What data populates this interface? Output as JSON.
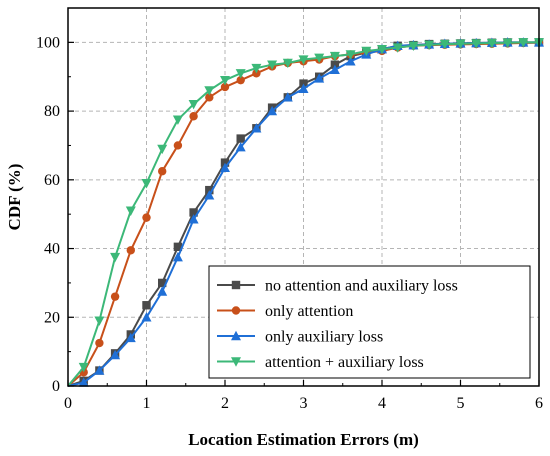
{
  "chart_data": {
    "type": "line",
    "title": "",
    "xlabel": "Location Estimation Errors (m)",
    "ylabel": "CDF (%)",
    "xlim": [
      0,
      6
    ],
    "ylim": [
      0,
      110
    ],
    "x_ticks": [
      "0",
      "1",
      "2",
      "3",
      "4",
      "5",
      "6"
    ],
    "y_ticks": [
      "0",
      "20",
      "40",
      "60",
      "80",
      "100"
    ],
    "grid": true,
    "legend_position": "bottom-right",
    "series": [
      {
        "name": "no attention and auxiliary loss",
        "color": "#4a4a4a",
        "marker": "square",
        "x": [
          0.2,
          0.4,
          0.6,
          0.8,
          1.0,
          1.2,
          1.4,
          1.6,
          1.8,
          2.0,
          2.2,
          2.4,
          2.6,
          2.8,
          3.0,
          3.2,
          3.4,
          3.6,
          3.8,
          4.0,
          4.2,
          4.4,
          4.6,
          4.8,
          5.0,
          5.2,
          5.4,
          5.6,
          5.8,
          6.0
        ],
        "y": [
          1.5,
          4.5,
          9.5,
          15,
          23.5,
          30,
          40.5,
          50.5,
          57,
          65,
          72,
          75,
          81,
          84,
          88,
          90,
          93.5,
          96,
          97,
          98,
          99,
          99.2,
          99.5,
          99.6,
          99.7,
          99.8,
          99.9,
          100,
          100,
          100
        ]
      },
      {
        "name": "only attention",
        "color": "#c8501a",
        "marker": "circle",
        "x": [
          0.2,
          0.4,
          0.6,
          0.8,
          1.0,
          1.2,
          1.4,
          1.6,
          1.8,
          2.0,
          2.2,
          2.4,
          2.6,
          2.8,
          3.0,
          3.2,
          3.4,
          3.6,
          3.8,
          4.0,
          4.2,
          4.4,
          4.6,
          4.8,
          5.0,
          5.2,
          5.4,
          5.6,
          5.8,
          6.0
        ],
        "y": [
          4,
          12.5,
          26,
          39.5,
          49,
          62.5,
          70,
          78.5,
          84,
          87,
          89,
          91,
          93,
          94,
          94.5,
          95,
          96,
          96.5,
          97,
          97.5,
          98.5,
          99,
          99.2,
          99.3,
          99.4,
          99.5,
          99.6,
          99.7,
          99.8,
          99.9
        ]
      },
      {
        "name": "only auxiliary loss",
        "color": "#1f6fd6",
        "marker": "triangle-up",
        "x": [
          0.2,
          0.4,
          0.6,
          0.8,
          1.0,
          1.2,
          1.4,
          1.6,
          1.8,
          2.0,
          2.2,
          2.4,
          2.6,
          2.8,
          3.0,
          3.2,
          3.4,
          3.6,
          3.8,
          4.0,
          4.2,
          4.4,
          4.6,
          4.8,
          5.0,
          5.2,
          5.4,
          5.6,
          5.8,
          6.0
        ],
        "y": [
          1,
          4.5,
          9,
          14,
          20,
          27.5,
          37.5,
          48.5,
          55.5,
          63.5,
          69.5,
          75,
          80,
          84,
          86.5,
          89.5,
          92,
          94.5,
          96.5,
          98,
          99,
          99.2,
          99.4,
          99.6,
          99.7,
          99.8,
          99.9,
          100,
          100,
          100
        ]
      },
      {
        "name": "attention + auxiliary loss",
        "color": "#3cb878",
        "marker": "triangle-down",
        "x": [
          0.2,
          0.4,
          0.6,
          0.8,
          1.0,
          1.2,
          1.4,
          1.6,
          1.8,
          2.0,
          2.2,
          2.4,
          2.6,
          2.8,
          3.0,
          3.2,
          3.4,
          3.6,
          3.8,
          4.0,
          4.2,
          4.4,
          4.6,
          4.8,
          5.0,
          5.2,
          5.4,
          5.6,
          5.8,
          6.0
        ],
        "y": [
          5.5,
          19,
          37.5,
          51,
          59,
          69,
          77.5,
          82,
          86,
          89,
          91,
          92.5,
          93.5,
          94,
          95,
          95.5,
          96,
          96.5,
          97.5,
          98,
          98.5,
          99,
          99.3,
          99.5,
          99.6,
          99.7,
          99.8,
          99.9,
          100,
          100
        ]
      }
    ]
  }
}
